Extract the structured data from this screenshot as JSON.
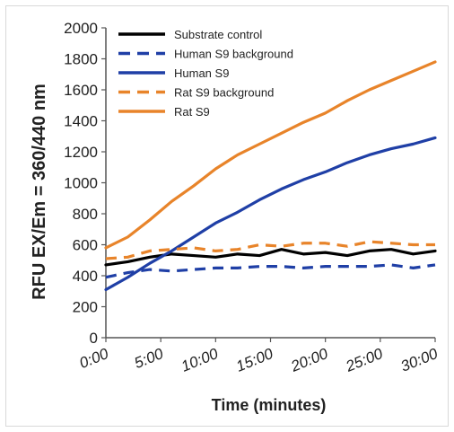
{
  "chart_data": {
    "type": "line",
    "xlabel": "Time (minutes)",
    "ylabel": "RFU EX/Em = 360/440 nm",
    "ylim": [
      0,
      2000
    ],
    "yticks": [
      "0",
      "200",
      "400",
      "600",
      "800",
      "1000",
      "1200",
      "1400",
      "1600",
      "1800",
      "2000"
    ],
    "xlim": [
      0,
      30
    ],
    "xticks": [
      "0:00",
      "5:00",
      "10:00",
      "15:00",
      "20:00",
      "25:00",
      "30:00"
    ],
    "legend_position": "top-right",
    "grid": false,
    "x": [
      0,
      2,
      4,
      6,
      8,
      10,
      12,
      14,
      16,
      18,
      20,
      22,
      24,
      26,
      28,
      30
    ],
    "series": [
      {
        "name": "Substrate control",
        "color": "#000000",
        "dash": "solid",
        "values": [
          470,
          490,
          520,
          540,
          530,
          520,
          540,
          530,
          570,
          540,
          550,
          530,
          560,
          570,
          540,
          560
        ]
      },
      {
        "name": "Human S9 background",
        "color": "#1f3fa6",
        "dash": "dashed",
        "values": [
          390,
          420,
          440,
          430,
          440,
          450,
          450,
          460,
          460,
          450,
          460,
          460,
          460,
          470,
          450,
          470
        ]
      },
      {
        "name": "Human S9",
        "color": "#1f3fa6",
        "dash": "solid",
        "values": [
          310,
          390,
          480,
          560,
          650,
          740,
          810,
          890,
          960,
          1020,
          1070,
          1130,
          1180,
          1220,
          1250,
          1290
        ]
      },
      {
        "name": "Rat S9 background",
        "color": "#e8842a",
        "dash": "dashed",
        "values": [
          510,
          520,
          560,
          570,
          580,
          560,
          570,
          600,
          590,
          610,
          610,
          590,
          620,
          610,
          600,
          600
        ]
      },
      {
        "name": "Rat S9",
        "color": "#e8842a",
        "dash": "solid",
        "values": [
          580,
          650,
          760,
          880,
          980,
          1090,
          1180,
          1250,
          1320,
          1390,
          1450,
          1530,
          1600,
          1660,
          1720,
          1780
        ]
      }
    ]
  }
}
